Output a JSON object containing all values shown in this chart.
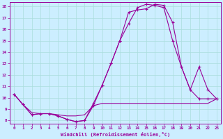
{
  "bg_color": "#cceeff",
  "line_color": "#990099",
  "grid_color": "#aadddd",
  "xlabel": "Windchill (Refroidissement éolien,°C)",
  "xlim": [
    -0.5,
    23.5
  ],
  "ylim": [
    7.7,
    18.4
  ],
  "yticks": [
    8,
    9,
    10,
    11,
    12,
    13,
    14,
    15,
    16,
    17,
    18
  ],
  "xticks": [
    0,
    1,
    2,
    3,
    4,
    5,
    6,
    7,
    8,
    9,
    10,
    11,
    12,
    13,
    14,
    15,
    16,
    17,
    18,
    19,
    20,
    21,
    22,
    23
  ],
  "line1_x": [
    0,
    1,
    2,
    3,
    4,
    5,
    6,
    7,
    8,
    9,
    10,
    11,
    12,
    13,
    14,
    15,
    16,
    17,
    18,
    19,
    20,
    21,
    22,
    23
  ],
  "line1_y": [
    10.3,
    9.4,
    8.5,
    8.6,
    8.6,
    8.4,
    8.1,
    7.9,
    8.0,
    9.3,
    11.1,
    13.0,
    15.0,
    17.5,
    17.7,
    17.8,
    18.2,
    18.1,
    16.6,
    12.7,
    10.7,
    12.7,
    10.7,
    9.9
  ],
  "line2_x": [
    0,
    1,
    2,
    3,
    4,
    5,
    6,
    7,
    8,
    9,
    10,
    11,
    12,
    13,
    14,
    15,
    16,
    17,
    18,
    19,
    20,
    21,
    22,
    23
  ],
  "line2_y": [
    10.3,
    9.4,
    8.5,
    8.6,
    8.6,
    8.4,
    8.1,
    7.9,
    8.0,
    9.5,
    11.1,
    13.0,
    15.0,
    16.5,
    17.9,
    18.2,
    18.1,
    17.9,
    15.0,
    12.7,
    10.7,
    9.9,
    9.9,
    9.9
  ],
  "line3_x": [
    0,
    1,
    2,
    3,
    4,
    5,
    6,
    7,
    8,
    9,
    10,
    11,
    12,
    13,
    14,
    15,
    16,
    17,
    18,
    19,
    20,
    21,
    22,
    23
  ],
  "line3_y": [
    10.3,
    9.4,
    8.7,
    8.6,
    8.6,
    8.5,
    8.4,
    8.4,
    8.5,
    9.3,
    9.5,
    9.5,
    9.5,
    9.5,
    9.5,
    9.5,
    9.5,
    9.5,
    9.5,
    9.5,
    9.5,
    9.5,
    9.5,
    9.9
  ]
}
